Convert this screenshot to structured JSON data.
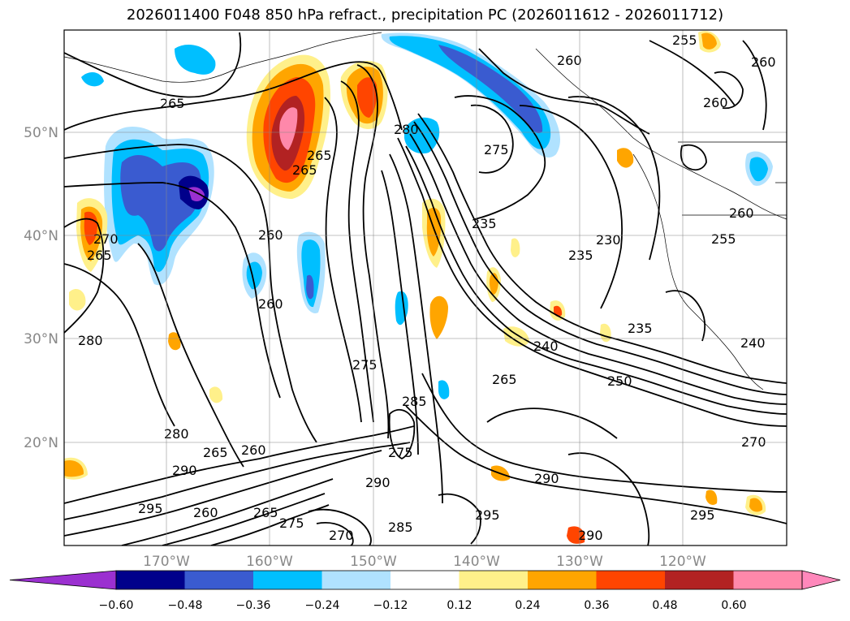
{
  "title": "2026011400 F048 850 hPa refract., precipitation PC (2026011612 - 2026011712)",
  "lat_labels": [
    "50°N",
    "40°N",
    "30°N",
    "20°N"
  ],
  "lon_labels": [
    "170°W",
    "160°W",
    "150°W",
    "140°W",
    "130°W",
    "120°W"
  ],
  "colorbar": {
    "ticks": [
      "−0.60",
      "−0.48",
      "−0.36",
      "−0.24",
      "−0.12",
      "0.12",
      "0.24",
      "0.36",
      "0.48",
      "0.60"
    ],
    "colors": [
      "#9b30d0",
      "#00008b",
      "#3a5bd0",
      "#00bfff",
      "#b0e2ff",
      "#ffffff",
      "#fff08a",
      "#ffa500",
      "#ff4500",
      "#b22222",
      "#ff88aa",
      "#ff88bb"
    ]
  },
  "contour_labels": [
    "265",
    "260",
    "255",
    "260",
    "265",
    "280",
    "275",
    "265",
    "260",
    "270",
    "265",
    "235",
    "235",
    "230",
    "260",
    "255",
    "260",
    "280",
    "260",
    "275",
    "240",
    "235",
    "240",
    "265",
    "250",
    "285",
    "280",
    "265",
    "260",
    "290",
    "290",
    "275",
    "290",
    "295",
    "270",
    "290",
    "295",
    "260",
    "265",
    "275",
    "270",
    "285",
    "295"
  ]
}
